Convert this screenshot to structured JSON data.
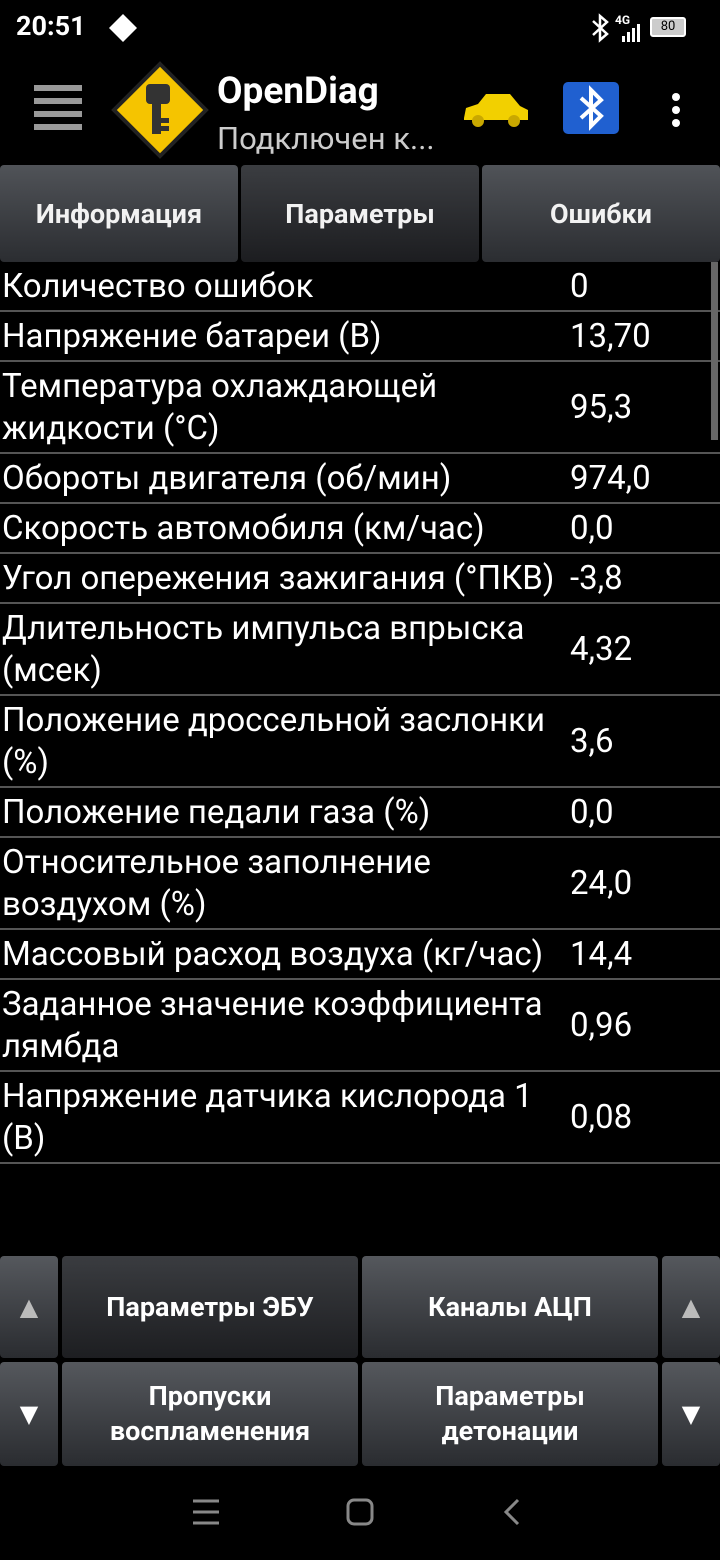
{
  "status_bar": {
    "time": "20:51",
    "network": "4G",
    "battery": "80"
  },
  "app_bar": {
    "title": "OpenDiag",
    "subtitle": "Подключен к..."
  },
  "tabs": [
    "Информация",
    "Параметры",
    "Ошибки"
  ],
  "rows": [
    {
      "label": "Количество ошибок",
      "value": "0"
    },
    {
      "label": "Напряжение батареи (В)",
      "value": "13,70"
    },
    {
      "label": "Температура охлаждающей жидкости (°C)",
      "value": "95,3"
    },
    {
      "label": "Обороты двигателя (об/мин)",
      "value": "974,0"
    },
    {
      "label": "Скорость автомобиля (км/час)",
      "value": "0,0"
    },
    {
      "label": "Угол опережения зажигания (°ПКВ)",
      "value": "-3,8"
    },
    {
      "label": "Длительность импульса впрыска (мсек)",
      "value": "4,32"
    },
    {
      "label": "Положение дроссельной заслонки (%)",
      "value": "3,6"
    },
    {
      "label": "Положение педали газа (%)",
      "value": "0,0"
    },
    {
      "label": "Относительное заполнение воздухом (%)",
      "value": "24,0"
    },
    {
      "label": "Массовый расход воздуха (кг/час)",
      "value": "14,4"
    },
    {
      "label": "Заданное значение коэффициента лямбда",
      "value": "0,96"
    },
    {
      "label": "Напряжение датчика кислорода 1 (В)",
      "value": "0,08"
    }
  ],
  "bottom_buttons": {
    "up_left": "▲",
    "up_right": "▲",
    "down_left": "▼",
    "down_right": "▼",
    "ecu_params": "Параметры ЭБУ",
    "adc_channels": "Каналы АЦП",
    "misfires": "Пропуски воспламенения",
    "knock_params": "Параметры детонации"
  }
}
